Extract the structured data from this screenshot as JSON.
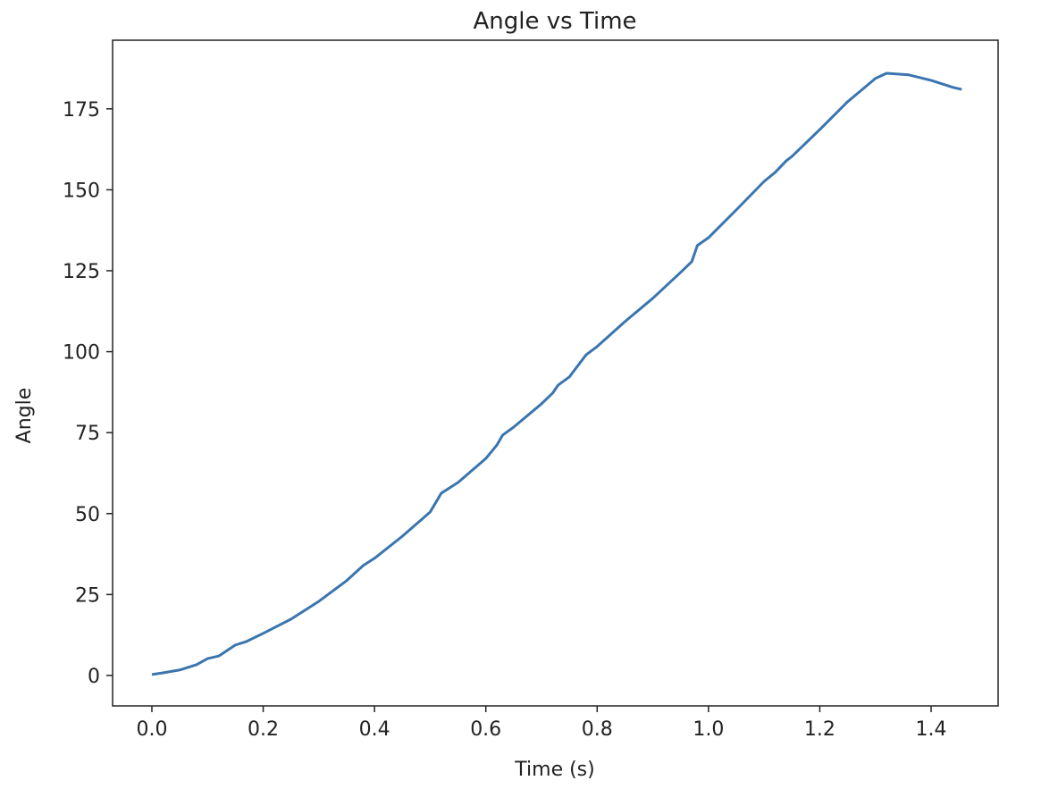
{
  "chart_data": {
    "type": "line",
    "title": "Angle vs Time",
    "xlabel": "Time (s)",
    "ylabel": "Angle",
    "x": [
      0.0,
      0.02,
      0.05,
      0.08,
      0.1,
      0.12,
      0.15,
      0.17,
      0.2,
      0.25,
      0.3,
      0.35,
      0.38,
      0.4,
      0.45,
      0.5,
      0.52,
      0.55,
      0.6,
      0.62,
      0.63,
      0.65,
      0.7,
      0.72,
      0.73,
      0.75,
      0.78,
      0.8,
      0.85,
      0.9,
      0.95,
      0.97,
      0.98,
      1.0,
      1.05,
      1.1,
      1.12,
      1.14,
      1.15,
      1.2,
      1.25,
      1.3,
      1.32,
      1.36,
      1.4,
      1.44,
      1.455
    ],
    "series": [
      {
        "name": "Angle",
        "color": "#3b75af",
        "values": [
          0.3,
          0.8,
          1.7,
          3.3,
          5.2,
          6,
          9.4,
          10.5,
          13,
          17.4,
          22.9,
          29.3,
          34,
          36.2,
          43,
          50.5,
          56.3,
          59.6,
          67,
          71.2,
          74.2,
          76.7,
          83.9,
          87.2,
          89.7,
          92.2,
          99,
          101.6,
          109.3,
          116.5,
          124.5,
          127.8,
          132.8,
          135.2,
          143.8,
          152.6,
          155.4,
          159,
          160.3,
          168.6,
          177.2,
          184.4,
          186,
          185.5,
          183.8,
          181.6,
          181
        ]
      }
    ],
    "xlim": [
      -0.0706,
      1.5204
    ],
    "xticks": [
      {
        "value": 0,
        "label": "0.0"
      },
      0.2,
      0.4,
      0.6,
      0.8,
      {
        "value": 1,
        "label": "1.0"
      },
      1.2,
      1.4
    ],
    "ylim": [
      -9.4,
      196.2
    ],
    "yticks": [
      0,
      25,
      50,
      75,
      100,
      125,
      150,
      175
    ],
    "grid": false
  }
}
